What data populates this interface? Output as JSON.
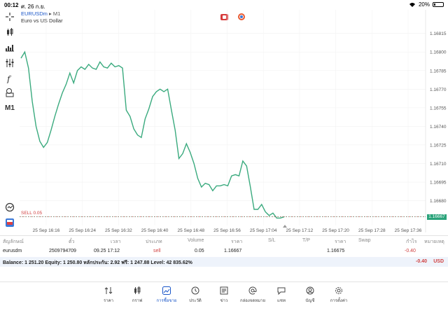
{
  "status_bar": {
    "time": "00:12",
    "date": "ศ. 26 ก.ย.",
    "battery": "20%",
    "battery_level": 0.2
  },
  "chart": {
    "symbol": "EURUSDm",
    "timeframe": "M1",
    "timeframe_arrow": "▸",
    "description": "Euro vs US Dollar",
    "timeframe_button": "M1",
    "sell_line_label": "SELL 0.05",
    "current_price_tag": "1.16667",
    "icons": [
      "crosshair-icon",
      "candles-icon",
      "bars-icon",
      "indicators-icon",
      "function-icon",
      "objects-icon",
      "clock-icon",
      "trade-icon"
    ]
  },
  "chart_data": {
    "type": "line",
    "x_tick_labels": [
      "25 Sep 16:16",
      "25 Sep 16:24",
      "25 Sep 16:32",
      "25 Sep 16:40",
      "25 Sep 16:48",
      "25 Sep 16:56",
      "25 Sep 17:04",
      "25 Sep 17:12",
      "25 Sep 17:20",
      "25 Sep 17:28",
      "25 Sep 17:36"
    ],
    "y_tick_labels": [
      "1.16815",
      "1.16800",
      "1.16785",
      "1.16770",
      "1.16755",
      "1.16740",
      "1.16725",
      "1.16710",
      "1.16695",
      "1.16680",
      "1.16667"
    ],
    "ylim": [
      1.1666,
      1.16825
    ],
    "series": [
      {
        "values": [
          1.16795,
          1.168,
          1.16787,
          1.1676,
          1.1674,
          1.16728,
          1.16723,
          1.16727,
          1.16737,
          1.16748,
          1.16758,
          1.16767,
          1.16774,
          1.16783,
          1.16775,
          1.16785,
          1.16788,
          1.16786,
          1.1679,
          1.16787,
          1.16786,
          1.16792,
          1.16788,
          1.16787,
          1.16791,
          1.16788,
          1.16789,
          1.16787,
          1.16753,
          1.16748,
          1.16738,
          1.16733,
          1.16731,
          1.16746,
          1.16754,
          1.16764,
          1.16768,
          1.1677,
          1.16768,
          1.1677,
          1.16753,
          1.16737,
          1.16714,
          1.16718,
          1.16726,
          1.16719,
          1.1671,
          1.16698,
          1.16691,
          1.16694,
          1.16693,
          1.16688,
          1.16692,
          1.16692,
          1.16693,
          1.16692,
          1.167,
          1.16701,
          1.167,
          1.16712,
          1.16708,
          1.16691,
          1.16673,
          1.16673,
          1.16677,
          1.16671,
          1.16668,
          1.1667,
          1.16666,
          1.16666,
          1.16667
        ]
      }
    ]
  },
  "positions": {
    "headers": [
      "สัญลักษณ์",
      "ตั๋ว",
      "เวลา",
      "ประเภท",
      "Volume",
      "ราคา",
      "S/L",
      "T/P",
      "ราคา",
      "Swap",
      "กำไร",
      "หมายเหตุ"
    ],
    "row": {
      "symbol": "eurusdm",
      "ticket": "2509794709",
      "time": "09.25 17:12",
      "type": "sell",
      "volume": "0.05",
      "open_price": "1.16667",
      "sl": "",
      "tp": "",
      "current_price": "1.16675",
      "swap": "",
      "profit": "-0.40",
      "comment": ""
    },
    "balance_text": "Balance: 1 251.20 Equity: 1 250.80 หลักประกัน: 2.92 ฟรี: 1 247.88 Level: 42 835.62%",
    "balance_profit": "-0.40",
    "balance_currency": "USD"
  },
  "nav": {
    "items": [
      {
        "label": "ราคา",
        "icon": "quotes-icon"
      },
      {
        "label": "กราฟ",
        "icon": "chart-icon"
      },
      {
        "label": "การซื้อขาย",
        "icon": "trade-icon"
      },
      {
        "label": "ประวัติ",
        "icon": "history-icon"
      },
      {
        "label": "ข่าว",
        "icon": "news-icon"
      },
      {
        "label": "กล่องจดหมาย",
        "icon": "mail-icon"
      },
      {
        "label": "แชท",
        "icon": "chat-icon"
      },
      {
        "label": "บัญชี",
        "icon": "account-icon"
      },
      {
        "label": "การตั้งค่า",
        "icon": "settings-icon"
      }
    ],
    "active_index": 2,
    "accent_color": "#1a56c8"
  }
}
